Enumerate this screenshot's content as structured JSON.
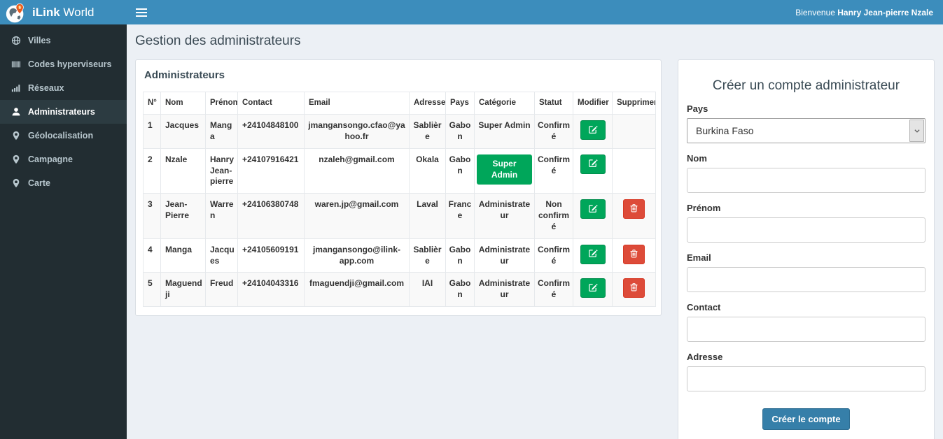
{
  "header": {
    "brand_bold": "iLink",
    "brand_regular": "World",
    "welcome_prefix": "Bienvenue",
    "welcome_name": "Hanry Jean-pierre Nzale",
    "hamburger_icon": "menu-hamburger-icon"
  },
  "sidebar": {
    "items": [
      {
        "label": "Villes",
        "icon": "globe-icon",
        "active": false
      },
      {
        "label": "Codes hyperviseurs",
        "icon": "barcode-icon",
        "active": false
      },
      {
        "label": "Réseaux",
        "icon": "signal-bars-icon",
        "active": false
      },
      {
        "label": "Administrateurs",
        "icon": "user-icon",
        "active": true
      },
      {
        "label": "Géolocalisation",
        "icon": "map-marker-icon",
        "active": false
      },
      {
        "label": "Campagne",
        "icon": "map-marker-icon",
        "active": false
      },
      {
        "label": "Carte",
        "icon": "map-marker-icon",
        "active": false
      }
    ]
  },
  "page": {
    "title": "Gestion des administrateurs"
  },
  "admin_panel": {
    "title": "Administrateurs",
    "table": {
      "headers": [
        "N°",
        "Nom",
        "Prénom",
        "Contact",
        "Email",
        "Adresse",
        "Pays",
        "Catégorie",
        "Statut",
        "Modifier",
        "Supprimer"
      ],
      "edit_icon": "edit-icon",
      "delete_icon": "trash-icon",
      "rows": [
        {
          "num": "1",
          "nom": "Jacques",
          "prenom": "Manga",
          "contact": "+24104848100",
          "email": "jmangansongo.cfao@yahoo.fr",
          "adresse": "Sablière",
          "pays": "Gabon",
          "categorie": "Super Admin",
          "categorie_style": "text",
          "statut": "Confirmé",
          "can_delete": false
        },
        {
          "num": "2",
          "nom": "Nzale",
          "prenom": "Hanry Jean-pierre",
          "contact": "+24107916421",
          "email": "nzaleh@gmail.com",
          "adresse": "Okala",
          "pays": "Gabon",
          "categorie": "Super Admin",
          "categorie_style": "button",
          "statut": "Confirmé",
          "can_delete": false
        },
        {
          "num": "3",
          "nom": "Jean-Pierre",
          "prenom": "Warren",
          "contact": "+24106380748",
          "email": "waren.jp@gmail.com",
          "adresse": "Laval",
          "pays": "France",
          "categorie": "Administrateur",
          "categorie_style": "text",
          "statut": "Non confirmé",
          "can_delete": true
        },
        {
          "num": "4",
          "nom": "Manga",
          "prenom": "Jacques",
          "contact": "+24105609191",
          "email": "jmangansongo@ilink-app.com",
          "adresse": "Sablière",
          "pays": "Gabon",
          "categorie": "Administrateur",
          "categorie_style": "text",
          "statut": "Confirmé",
          "can_delete": true
        },
        {
          "num": "5",
          "nom": "Maguendji",
          "prenom": "Freud",
          "contact": "+24104043316",
          "email": "fmaguendji@gmail.com",
          "adresse": "IAI",
          "pays": "Gabon",
          "categorie": "Administrateur",
          "categorie_style": "text",
          "statut": "Confirmé",
          "can_delete": true
        }
      ]
    }
  },
  "form": {
    "title": "Créer un compte administrateur",
    "fields": [
      {
        "label": "Pays",
        "type": "select",
        "value": "Burkina Faso"
      },
      {
        "label": "Nom",
        "type": "text",
        "value": ""
      },
      {
        "label": "Prénom",
        "type": "text",
        "value": ""
      },
      {
        "label": "Email",
        "type": "text",
        "value": ""
      },
      {
        "label": "Contact",
        "type": "text",
        "value": ""
      },
      {
        "label": "Adresse",
        "type": "text",
        "value": ""
      }
    ],
    "submit_label": "Créer le compte"
  },
  "colors": {
    "topbar": "#3c8dbc",
    "sidebar_bg": "#222d32",
    "sidebar_text": "#b8c7ce",
    "sidebar_active_bg": "#2c3b41",
    "page_bg": "#ecf0f5",
    "success_green": "#00a65a",
    "danger_red": "#dd4b39",
    "submit_blue": "#367fa9",
    "stripe_row": "#f9f9f9"
  }
}
